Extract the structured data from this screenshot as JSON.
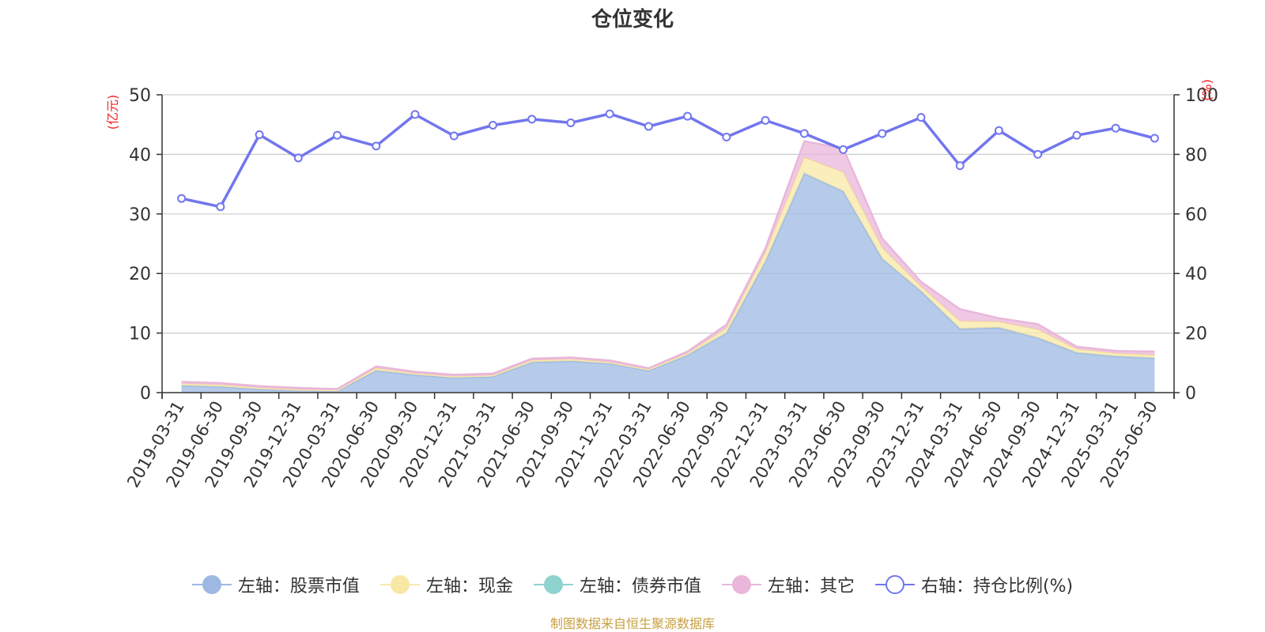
{
  "title": "仓位变化",
  "source": "制图数据来自恒生聚源数据库",
  "chart_data": {
    "type": "area",
    "title": "仓位变化",
    "left_axis_label": "(亿元)",
    "right_axis_label": "(%)",
    "left_ylim": [
      0,
      50
    ],
    "left_ticks": [
      0,
      10,
      20,
      30,
      40,
      50
    ],
    "right_ylim": [
      0,
      100
    ],
    "right_ticks": [
      0,
      20,
      40,
      60,
      80,
      100
    ],
    "grid": true,
    "legend_position": "bottom",
    "categories": [
      "2019-03-31",
      "2019-06-30",
      "2019-09-30",
      "2019-12-31",
      "2020-03-31",
      "2020-06-30",
      "2020-09-30",
      "2020-12-31",
      "2021-03-31",
      "2021-06-30",
      "2021-09-30",
      "2021-12-31",
      "2022-03-31",
      "2022-06-30",
      "2022-09-30",
      "2022-12-31",
      "2023-03-31",
      "2023-06-30",
      "2023-09-30",
      "2023-12-31",
      "2024-03-31",
      "2024-06-30",
      "2024-09-30",
      "2024-12-31",
      "2025-03-31",
      "2025-06-30"
    ],
    "series": [
      {
        "name": "左轴：股票市值",
        "axis": "left",
        "kind": "area",
        "color": "#9db9e3",
        "values": [
          1.2,
          1.0,
          0.6,
          0.4,
          0.3,
          3.7,
          3.0,
          2.5,
          2.7,
          5.1,
          5.3,
          4.9,
          3.7,
          6.3,
          10.0,
          22.0,
          36.8,
          33.8,
          22.5,
          17.0,
          10.7,
          10.9,
          9.2,
          6.7,
          6.1,
          5.8
        ]
      },
      {
        "name": "左轴：现金",
        "axis": "left",
        "kind": "area",
        "color": "#f8e8a6",
        "values": [
          0.3,
          0.3,
          0.2,
          0.1,
          0.1,
          0.4,
          0.2,
          0.2,
          0.2,
          0.3,
          0.3,
          0.2,
          0.2,
          0.3,
          0.8,
          1.5,
          2.7,
          3.2,
          1.8,
          0.8,
          1.3,
          1.0,
          1.4,
          0.6,
          0.5,
          0.5
        ]
      },
      {
        "name": "左轴：债券市值",
        "axis": "left",
        "kind": "area",
        "color": "#8fd3cf",
        "values": [
          0,
          0,
          0,
          0,
          0,
          0,
          0,
          0,
          0,
          0,
          0,
          0,
          0,
          0,
          0,
          0,
          0,
          0,
          0,
          0,
          0,
          0,
          0,
          0,
          0,
          0
        ]
      },
      {
        "name": "左轴：其它",
        "axis": "left",
        "kind": "area",
        "color": "#e9b7da",
        "values": [
          0.3,
          0.3,
          0.3,
          0.3,
          0.2,
          0.3,
          0.3,
          0.3,
          0.3,
          0.3,
          0.3,
          0.3,
          0.2,
          0.3,
          0.6,
          0.7,
          2.7,
          4.0,
          1.6,
          0.8,
          2.0,
          0.6,
          0.9,
          0.4,
          0.4,
          0.6
        ]
      },
      {
        "name": "右轴：持仓比例(%)",
        "axis": "right",
        "kind": "line",
        "color": "#7276ee",
        "values": [
          65.2,
          62.4,
          86.6,
          78.8,
          86.4,
          82.8,
          93.4,
          86.2,
          89.8,
          91.8,
          90.6,
          93.6,
          89.4,
          92.8,
          85.8,
          91.4,
          87.0,
          81.6,
          87.0,
          92.4,
          76.2,
          88.0,
          80.0,
          86.4,
          88.8,
          85.4
        ]
      }
    ]
  }
}
